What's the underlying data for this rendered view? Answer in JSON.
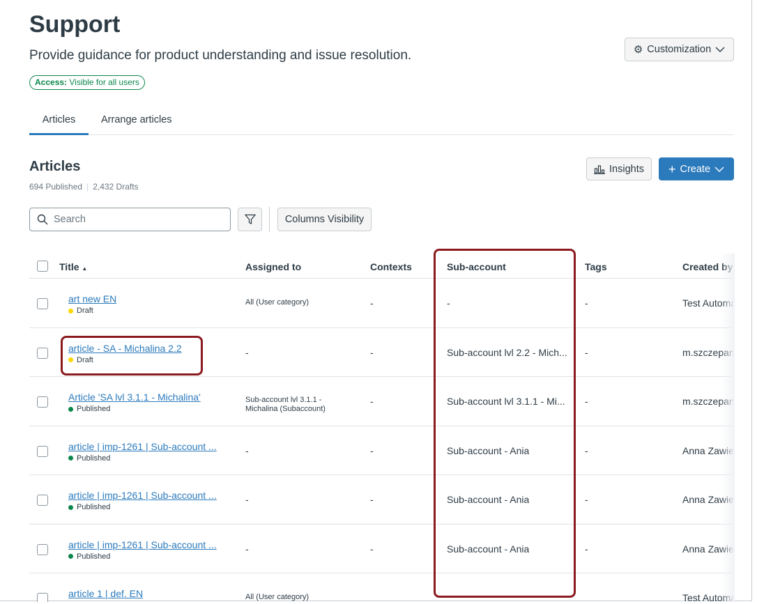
{
  "header": {
    "title": "Support",
    "subtitle": "Provide guidance for product understanding and issue resolution.",
    "access_label": "Access:",
    "access_value": "Visible for all users",
    "customization_label": "Customization"
  },
  "tabs": [
    {
      "label": "Articles",
      "active": true
    },
    {
      "label": "Arrange articles",
      "active": false
    }
  ],
  "articles": {
    "heading": "Articles",
    "published": "694 Published",
    "drafts": "2,432 Drafts",
    "insights_label": "Insights",
    "create_label": "Create",
    "search_placeholder": "Search",
    "columns_visibility_label": "Columns Visibility"
  },
  "colors": {
    "accent": "#2b7abc",
    "draft": "#fcd700",
    "published": "#0b874b",
    "highlight": "#8b1a1f"
  },
  "table": {
    "columns": [
      "Title",
      "Assigned to",
      "Contexts",
      "Sub-account",
      "Tags",
      "Created by"
    ],
    "sort": "Title ascending",
    "rows": [
      {
        "title": "art new EN",
        "status": "Draft",
        "assigned": "All (User category)",
        "contexts": "-",
        "subaccount": "-",
        "tags": "-",
        "created_by": "Test Automation"
      },
      {
        "title": "article - SA - Michalina 2.2",
        "status": "Draft",
        "assigned": "-",
        "contexts": "-",
        "subaccount": "Sub-account lvl 2.2 - Mich...",
        "tags": "-",
        "created_by": "m.szczepanik"
      },
      {
        "title": "Article 'SA lvl 3.1.1 - Michalina'",
        "status": "Published",
        "assigned": "Sub-account lvl 3.1.1 - Michalina (Subaccount)",
        "contexts": "-",
        "subaccount": "Sub-account lvl 3.1.1 - Mi...",
        "tags": "-",
        "created_by": "m.szczepanik"
      },
      {
        "title": "article | imp-1261 | Sub-account ...",
        "status": "Published",
        "assigned": "-",
        "contexts": "-",
        "subaccount": "Sub-account - Ania",
        "tags": "-",
        "created_by": "Anna Zawieja"
      },
      {
        "title": "article | imp-1261 | Sub-account ...",
        "status": "Published",
        "assigned": "-",
        "contexts": "-",
        "subaccount": "Sub-account - Ania",
        "tags": "-",
        "created_by": "Anna Zawieja"
      },
      {
        "title": "article | imp-1261 | Sub-account ...",
        "status": "Published",
        "assigned": "-",
        "contexts": "-",
        "subaccount": "Sub-account - Ania",
        "tags": "-",
        "created_by": "Anna Zawieja"
      },
      {
        "title": "article 1 | def. EN",
        "status": "",
        "assigned": "All (User category)",
        "contexts": "",
        "subaccount": "",
        "tags": "",
        "created_by": "Test Automation"
      }
    ]
  }
}
